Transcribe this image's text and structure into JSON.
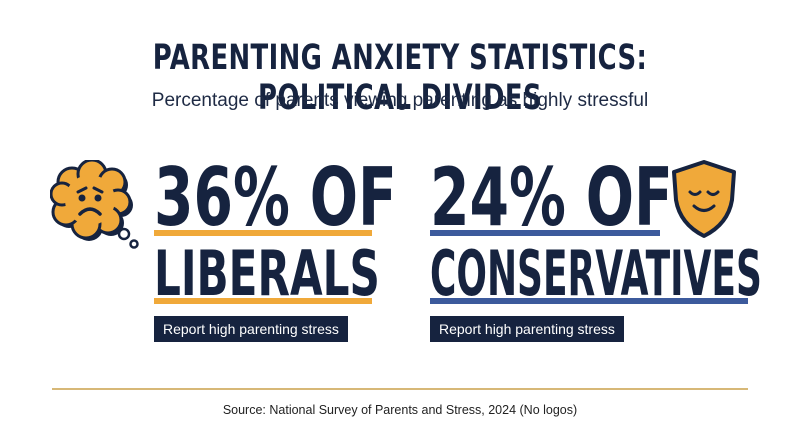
{
  "title": "PARENTING ANXIETY STATISTICS: POLITICAL DIVIDES",
  "subtitle": "Percentage of parents viewing parenting as highly stressful",
  "stats": [
    {
      "line1": "36% OF",
      "line2": "LIBERALS",
      "caption": "Report high parenting stress",
      "value_percent": 36,
      "accent_color": "#f0a93a",
      "icon": "worried-thought-cloud-icon"
    },
    {
      "line1": "24% OF",
      "line2": "CONSERVATIVES",
      "caption": "Report high parenting stress",
      "value_percent": 24,
      "accent_color": "#3c5a9c",
      "icon": "calm-shield-icon"
    }
  ],
  "source": "Source: National Survey of Parents and Stress, 2024 (No logos)",
  "colors": {
    "navy": "#16233f",
    "orange": "#f0a93a",
    "blue": "#3c5a9c",
    "divider": "#d7b877"
  }
}
